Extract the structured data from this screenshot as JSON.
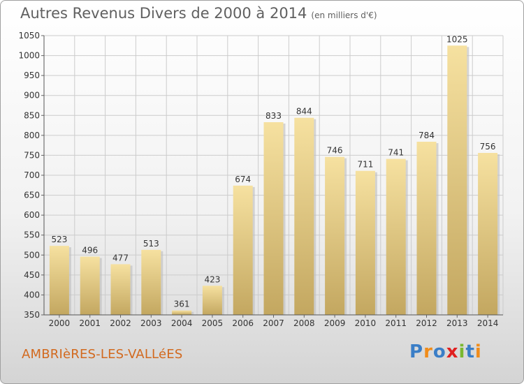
{
  "title": "Autres Revenus Divers de 2000 à 2014",
  "subtitle": "(en milliers d'€)",
  "town": "AMBRIèRES-LES-VALLéES",
  "logo": {
    "text": "Proxiti",
    "letter_colors": [
      "#3a7ec7",
      "#f08c1a",
      "#3a7ec7",
      "#e02020",
      "#7ab830",
      "#3a7ec7",
      "#f08c1a"
    ]
  },
  "colors": {
    "town": "#d2691e",
    "bar_top": "#f6e1a0",
    "bar_bottom": "#c3a760",
    "bar_shadow": "#bcbcbc",
    "grid": "#cccccc"
  },
  "chart_data": {
    "type": "bar",
    "title": "Autres Revenus Divers de 2000 à 2014",
    "subtitle": "(en milliers d'€)",
    "categories": [
      "2000",
      "2001",
      "2002",
      "2003",
      "2004",
      "2005",
      "2006",
      "2007",
      "2008",
      "2009",
      "2010",
      "2011",
      "2012",
      "2013",
      "2014"
    ],
    "values": [
      523,
      496,
      477,
      513,
      361,
      423,
      674,
      833,
      844,
      746,
      711,
      741,
      784,
      1025,
      756
    ],
    "ylim": [
      350,
      1050
    ],
    "yticks": [
      350,
      400,
      450,
      500,
      550,
      600,
      650,
      700,
      750,
      800,
      850,
      900,
      950,
      1000,
      1050
    ],
    "grid": true,
    "legend": "none"
  }
}
